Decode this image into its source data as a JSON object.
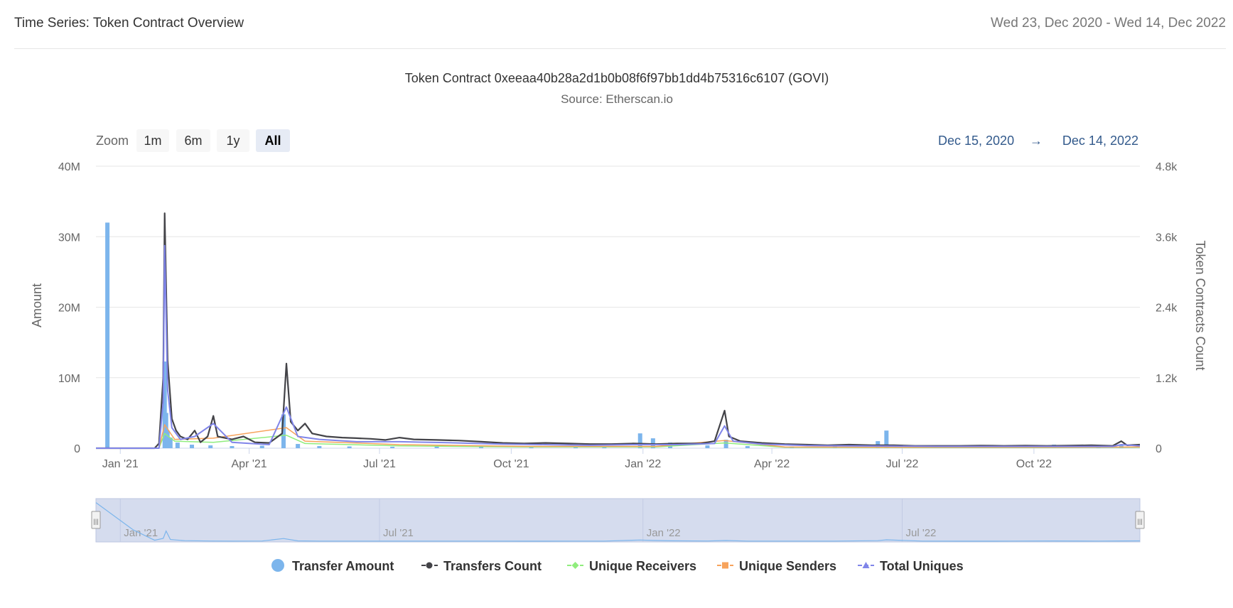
{
  "header": {
    "title": "Time Series: Token Contract Overview",
    "date_range": "Wed 23, Dec 2020 - Wed 14, Dec 2022"
  },
  "range_selector": {
    "zoom_label": "Zoom",
    "buttons": [
      {
        "label": "1m",
        "selected": false
      },
      {
        "label": "6m",
        "selected": false
      },
      {
        "label": "1y",
        "selected": false
      },
      {
        "label": "All",
        "selected": true
      }
    ],
    "from": "Dec 15, 2020",
    "arrow": "→",
    "to": "Dec 14, 2022"
  },
  "navigator": {
    "labels": [
      "Jan '21",
      "Jul '21",
      "Jan '22",
      "Jul '22"
    ],
    "handle_glyph": "|||"
  },
  "colors": {
    "transfer_amount": "#7cb5ec",
    "transfers_count": "#434348",
    "unique_receivers": "#90ed7d",
    "unique_senders": "#f7a35c",
    "total_uniques": "#8085e9",
    "navigator_fill": "#d5dcee",
    "grid": "#e6e6e6",
    "range_text": "#335a8c"
  },
  "chart_data": {
    "type": "line",
    "title": "Token Contract 0xeeaa40b28a2d1b0b08f6f97bb1dd4b75316c6107 (GOVI)",
    "subtitle": "Source: Etherscan.io",
    "x_axis": {
      "type": "date",
      "range": [
        "2020-12-15",
        "2022-12-14"
      ],
      "tick_labels": [
        "Jan '21",
        "Apr '21",
        "Jul '21",
        "Oct '21",
        "Jan '22",
        "Apr '22",
        "Jul '22",
        "Oct '22"
      ],
      "tick_dates": [
        "2021-01-01",
        "2021-04-01",
        "2021-07-01",
        "2021-10-01",
        "2022-01-01",
        "2022-04-01",
        "2022-07-01",
        "2022-10-01"
      ]
    },
    "y_axis_left": {
      "label": "Amount",
      "range": [
        0,
        40000000
      ],
      "tick_values": [
        0,
        10000000,
        20000000,
        30000000,
        40000000
      ],
      "tick_labels": [
        "0",
        "10M",
        "20M",
        "30M",
        "40M"
      ]
    },
    "y_axis_right": {
      "label": "Token Contracts Count",
      "range": [
        0,
        4800
      ],
      "tick_values": [
        0,
        1200,
        2400,
        3600,
        4800
      ],
      "tick_labels": [
        "0",
        "1.2k",
        "2.4k",
        "3.6k",
        "4.8k"
      ]
    },
    "grid": true,
    "legend_position": "bottom",
    "series": [
      {
        "name": "Transfer Amount",
        "type": "column",
        "axis": "left",
        "points": [
          [
            "2020-12-23",
            32000000
          ],
          [
            "2021-02-01",
            12300000
          ],
          [
            "2021-02-02",
            5000000
          ],
          [
            "2021-02-03",
            2500000
          ],
          [
            "2021-02-05",
            1500000
          ],
          [
            "2021-02-10",
            800000
          ],
          [
            "2021-02-20",
            500000
          ],
          [
            "2021-03-05",
            400000
          ],
          [
            "2021-03-20",
            300000
          ],
          [
            "2021-04-10",
            350000
          ],
          [
            "2021-04-25",
            4800000
          ],
          [
            "2021-05-05",
            600000
          ],
          [
            "2021-05-20",
            300000
          ],
          [
            "2021-06-10",
            250000
          ],
          [
            "2021-07-10",
            200000
          ],
          [
            "2021-08-10",
            250000
          ],
          [
            "2021-09-10",
            200000
          ],
          [
            "2021-10-15",
            150000
          ],
          [
            "2021-11-15",
            200000
          ],
          [
            "2021-12-05",
            300000
          ],
          [
            "2021-12-30",
            2100000
          ],
          [
            "2022-01-08",
            1400000
          ],
          [
            "2022-01-20",
            800000
          ],
          [
            "2022-02-15",
            400000
          ],
          [
            "2022-02-28",
            1200000
          ],
          [
            "2022-03-15",
            300000
          ],
          [
            "2022-04-15",
            250000
          ],
          [
            "2022-05-15",
            300000
          ],
          [
            "2022-06-14",
            1000000
          ],
          [
            "2022-06-20",
            2500000
          ],
          [
            "2022-07-15",
            200000
          ],
          [
            "2022-08-15",
            150000
          ],
          [
            "2022-09-15",
            200000
          ],
          [
            "2022-10-15",
            500000
          ],
          [
            "2022-11-15",
            300000
          ],
          [
            "2022-12-01",
            500000
          ]
        ]
      },
      {
        "name": "Transfers Count",
        "type": "line",
        "axis": "right",
        "points": [
          [
            "2020-12-15",
            0
          ],
          [
            "2021-01-25",
            0
          ],
          [
            "2021-01-28",
            80
          ],
          [
            "2021-01-31",
            1200
          ],
          [
            "2021-02-01",
            4000
          ],
          [
            "2021-02-03",
            1500
          ],
          [
            "2021-02-06",
            500
          ],
          [
            "2021-02-09",
            300
          ],
          [
            "2021-02-12",
            200
          ],
          [
            "2021-02-17",
            150
          ],
          [
            "2021-02-22",
            300
          ],
          [
            "2021-02-26",
            100
          ],
          [
            "2021-03-03",
            200
          ],
          [
            "2021-03-07",
            550
          ],
          [
            "2021-03-10",
            200
          ],
          [
            "2021-03-20",
            150
          ],
          [
            "2021-03-28",
            200
          ],
          [
            "2021-04-05",
            100
          ],
          [
            "2021-04-15",
            90
          ],
          [
            "2021-04-24",
            250
          ],
          [
            "2021-04-27",
            1440
          ],
          [
            "2021-04-30",
            450
          ],
          [
            "2021-05-05",
            300
          ],
          [
            "2021-05-10",
            420
          ],
          [
            "2021-05-15",
            250
          ],
          [
            "2021-05-25",
            200
          ],
          [
            "2021-06-05",
            180
          ],
          [
            "2021-06-15",
            170
          ],
          [
            "2021-06-25",
            160
          ],
          [
            "2021-07-05",
            140
          ],
          [
            "2021-07-15",
            180
          ],
          [
            "2021-07-25",
            150
          ],
          [
            "2021-08-10",
            140
          ],
          [
            "2021-08-25",
            130
          ],
          [
            "2021-09-10",
            110
          ],
          [
            "2021-09-25",
            90
          ],
          [
            "2021-10-10",
            80
          ],
          [
            "2021-10-25",
            90
          ],
          [
            "2021-11-10",
            80
          ],
          [
            "2021-11-25",
            70
          ],
          [
            "2021-12-10",
            70
          ],
          [
            "2021-12-25",
            80
          ],
          [
            "2022-01-10",
            70
          ],
          [
            "2022-01-25",
            80
          ],
          [
            "2022-02-10",
            80
          ],
          [
            "2022-02-20",
            120
          ],
          [
            "2022-02-27",
            640
          ],
          [
            "2022-03-02",
            200
          ],
          [
            "2022-03-10",
            120
          ],
          [
            "2022-03-25",
            90
          ],
          [
            "2022-04-10",
            70
          ],
          [
            "2022-04-25",
            60
          ],
          [
            "2022-05-10",
            50
          ],
          [
            "2022-05-25",
            60
          ],
          [
            "2022-06-10",
            50
          ],
          [
            "2022-06-25",
            50
          ],
          [
            "2022-07-10",
            40
          ],
          [
            "2022-07-25",
            40
          ],
          [
            "2022-08-10",
            40
          ],
          [
            "2022-08-25",
            45
          ],
          [
            "2022-09-10",
            40
          ],
          [
            "2022-09-25",
            45
          ],
          [
            "2022-10-10",
            40
          ],
          [
            "2022-10-25",
            45
          ],
          [
            "2022-11-10",
            50
          ],
          [
            "2022-11-25",
            40
          ],
          [
            "2022-12-01",
            120
          ],
          [
            "2022-12-05",
            50
          ],
          [
            "2022-12-14",
            60
          ]
        ]
      },
      {
        "name": "Unique Receivers",
        "type": "line",
        "axis": "right",
        "points": [
          [
            "2020-12-15",
            0
          ],
          [
            "2021-01-28",
            0
          ],
          [
            "2021-02-01",
            250
          ],
          [
            "2021-02-08",
            120
          ],
          [
            "2021-03-07",
            100
          ],
          [
            "2021-04-27",
            220
          ],
          [
            "2021-05-10",
            80
          ],
          [
            "2021-07-15",
            40
          ],
          [
            "2021-10-10",
            20
          ],
          [
            "2022-01-10",
            20
          ],
          [
            "2022-02-27",
            90
          ],
          [
            "2022-04-10",
            15
          ],
          [
            "2022-07-10",
            10
          ],
          [
            "2022-10-10",
            10
          ],
          [
            "2022-12-14",
            15
          ]
        ]
      },
      {
        "name": "Unique Senders",
        "type": "line",
        "axis": "right",
        "points": [
          [
            "2020-12-15",
            0
          ],
          [
            "2021-01-28",
            0
          ],
          [
            "2021-02-01",
            400
          ],
          [
            "2021-02-08",
            150
          ],
          [
            "2021-03-07",
            170
          ],
          [
            "2021-04-27",
            350
          ],
          [
            "2021-05-10",
            120
          ],
          [
            "2021-07-15",
            60
          ],
          [
            "2021-10-10",
            30
          ],
          [
            "2022-01-10",
            30
          ],
          [
            "2022-02-27",
            130
          ],
          [
            "2022-04-10",
            20
          ],
          [
            "2022-07-10",
            15
          ],
          [
            "2022-10-10",
            15
          ],
          [
            "2022-12-14",
            20
          ]
        ]
      },
      {
        "name": "Total Uniques",
        "type": "line",
        "axis": "right",
        "points": [
          [
            "2020-12-15",
            0
          ],
          [
            "2021-01-28",
            0
          ],
          [
            "2021-01-31",
            800
          ],
          [
            "2021-02-01",
            3450
          ],
          [
            "2021-02-03",
            1000
          ],
          [
            "2021-02-06",
            350
          ],
          [
            "2021-02-12",
            150
          ],
          [
            "2021-02-22",
            200
          ],
          [
            "2021-03-07",
            420
          ],
          [
            "2021-03-20",
            100
          ],
          [
            "2021-04-15",
            60
          ],
          [
            "2021-04-27",
            700
          ],
          [
            "2021-05-05",
            200
          ],
          [
            "2021-05-20",
            150
          ],
          [
            "2021-06-15",
            110
          ],
          [
            "2021-07-15",
            110
          ],
          [
            "2021-08-25",
            90
          ],
          [
            "2021-09-25",
            70
          ],
          [
            "2021-10-25",
            60
          ],
          [
            "2021-11-25",
            50
          ],
          [
            "2021-12-25",
            60
          ],
          [
            "2022-01-25",
            60
          ],
          [
            "2022-02-20",
            80
          ],
          [
            "2022-02-27",
            380
          ],
          [
            "2022-03-05",
            120
          ],
          [
            "2022-03-25",
            70
          ],
          [
            "2022-04-25",
            45
          ],
          [
            "2022-05-25",
            40
          ],
          [
            "2022-06-25",
            35
          ],
          [
            "2022-07-25",
            30
          ],
          [
            "2022-08-25",
            30
          ],
          [
            "2022-09-25",
            30
          ],
          [
            "2022-10-25",
            30
          ],
          [
            "2022-11-25",
            30
          ],
          [
            "2022-12-01",
            60
          ],
          [
            "2022-12-14",
            40
          ]
        ]
      }
    ]
  }
}
